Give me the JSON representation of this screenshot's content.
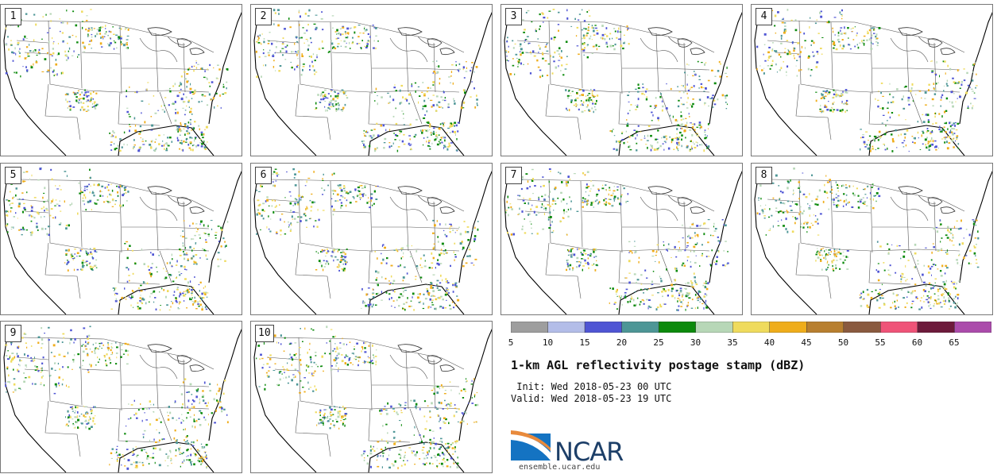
{
  "panels": [
    {
      "label": "1"
    },
    {
      "label": "2"
    },
    {
      "label": "3"
    },
    {
      "label": "4"
    },
    {
      "label": "5"
    },
    {
      "label": "6"
    },
    {
      "label": "7"
    },
    {
      "label": "8"
    },
    {
      "label": "9"
    },
    {
      "label": "10"
    }
  ],
  "colorbar": {
    "ticks": [
      "5",
      "10",
      "15",
      "20",
      "25",
      "30",
      "35",
      "40",
      "45",
      "50",
      "55",
      "60",
      "65"
    ],
    "colors": [
      "#9e9e9e",
      "#b3bde8",
      "#4f55d4",
      "#4d9696",
      "#0c8a0c",
      "#b7d7b7",
      "#efdb5d",
      "#efad1b",
      "#b87f2f",
      "#8a5a3f",
      "#ef5378",
      "#6d1a3b",
      "#ab4bab"
    ]
  },
  "title": "1-km AGL reflectivity postage stamp (dBZ)",
  "init_line": " Init: Wed 2018-05-23 00 UTC",
  "valid_line": "Valid: Wed 2018-05-23 19 UTC",
  "logo": {
    "text": "NCAR",
    "site": "ensemble.ucar.edu",
    "brand_color": "#1d3f68",
    "accent_color": "#1473c2"
  }
}
